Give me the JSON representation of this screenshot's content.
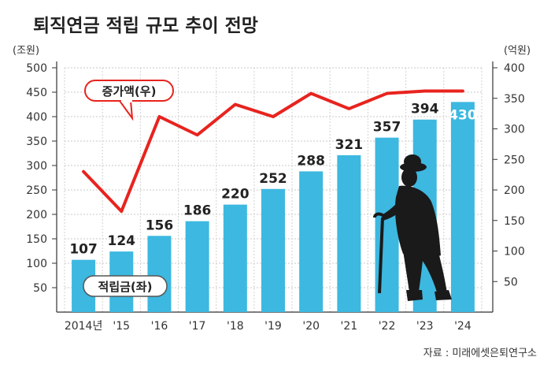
{
  "chart_data": {
    "type": "bar+line",
    "title": "퇴직연금 적립 규모 추이 전망",
    "left_unit": "(조원)",
    "right_unit": "(억원)",
    "categories": [
      "2014년",
      "'15",
      "'16",
      "'17",
      "'18",
      "'19",
      "'20",
      "'21",
      "'22",
      "'23",
      "'24"
    ],
    "left_axis": {
      "ticks": [
        50,
        100,
        150,
        200,
        250,
        300,
        350,
        400,
        450,
        500
      ],
      "ylim": [
        0,
        500
      ]
    },
    "right_axis": {
      "ticks": [
        50,
        100,
        150,
        200,
        250,
        300,
        350,
        400
      ],
      "ylim": [
        0,
        400
      ]
    },
    "grid": true,
    "bar_series": {
      "name": "적립금(좌)",
      "values": [
        107,
        124,
        156,
        186,
        220,
        252,
        288,
        321,
        357,
        394,
        430
      ],
      "color": "#3db8e0"
    },
    "line_series": {
      "name": "증가액(우)",
      "values": [
        230,
        165,
        320,
        290,
        340,
        320,
        358,
        333,
        358,
        362,
        362
      ],
      "color": "#e8231e"
    },
    "source": "자료 : 미래에셋은퇴연구소"
  }
}
